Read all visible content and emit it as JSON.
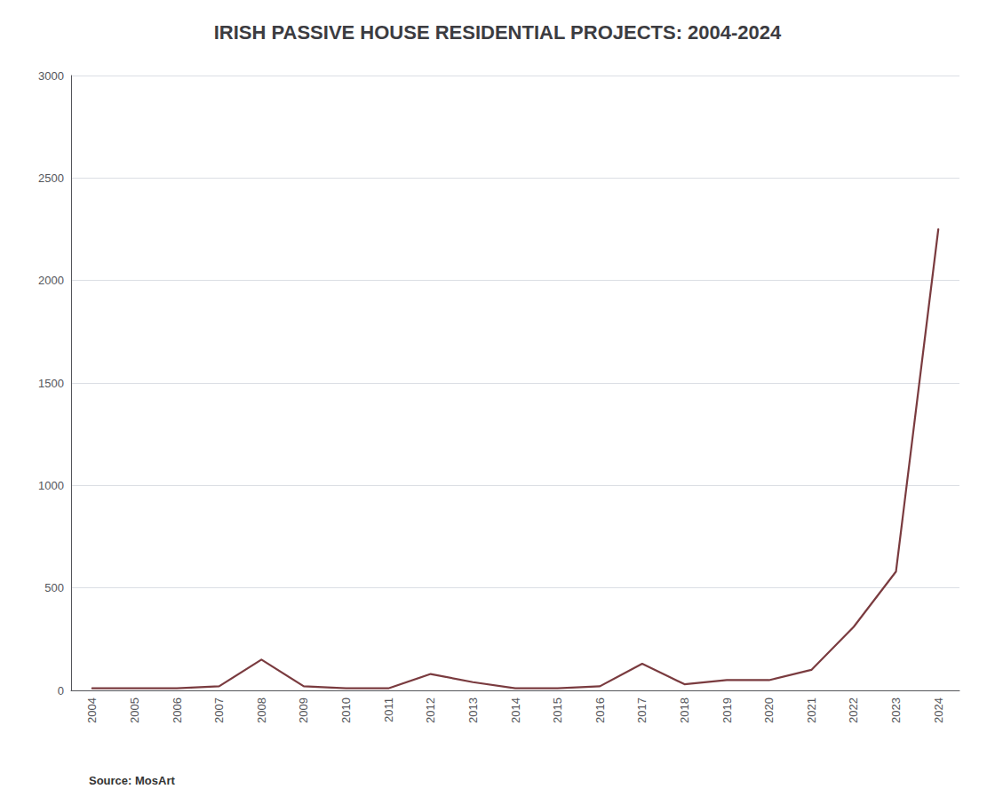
{
  "chart_data": {
    "type": "line",
    "title": "IRISH PASSIVE HOUSE RESIDENTIAL PROJECTS: 2004-2024",
    "annotation": "Source: MosArt",
    "categories": [
      "2004",
      "2005",
      "2006",
      "2007",
      "2008",
      "2009",
      "2010",
      "2011",
      "2012",
      "2013",
      "2014",
      "2015",
      "2016",
      "2017",
      "2018",
      "2019",
      "2020",
      "2021",
      "2022",
      "2023",
      "2024"
    ],
    "values": [
      10,
      10,
      10,
      20,
      150,
      20,
      10,
      10,
      80,
      40,
      10,
      10,
      20,
      130,
      30,
      50,
      50,
      100,
      310,
      580,
      2250
    ],
    "color": "#7a3b3f",
    "ylim": [
      0,
      3000
    ],
    "yticks": [
      0,
      500,
      1000,
      1500,
      2000,
      2500,
      3000
    ],
    "grid": true
  }
}
